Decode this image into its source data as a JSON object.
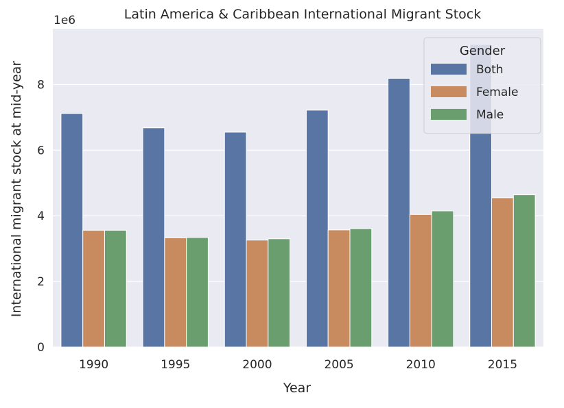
{
  "chart_data": {
    "type": "bar",
    "title": "Latin America & Caribbean International Migrant Stock",
    "xlabel": "Year",
    "ylabel": "International migrant stock at mid-year",
    "y_offset_label": "1e6",
    "categories": [
      "1990",
      "1995",
      "2000",
      "2005",
      "2010",
      "2015"
    ],
    "series": [
      {
        "name": "Both",
        "color": "#5875a4",
        "values": [
          7.12,
          6.68,
          6.55,
          7.22,
          8.19,
          9.22
        ]
      },
      {
        "name": "Female",
        "color": "#c88a5f",
        "values": [
          3.56,
          3.33,
          3.26,
          3.57,
          4.04,
          4.55
        ]
      },
      {
        "name": "Male",
        "color": "#6a9e6f",
        "values": [
          3.56,
          3.34,
          3.3,
          3.61,
          4.15,
          4.64
        ]
      }
    ],
    "ylim": [
      0,
      9.7
    ],
    "yticks": [
      "0",
      "2",
      "4",
      "6",
      "8"
    ],
    "grid": true,
    "legend": {
      "title": "Gender",
      "placement": "top-right"
    },
    "plot_background": "#eaeaf2"
  }
}
